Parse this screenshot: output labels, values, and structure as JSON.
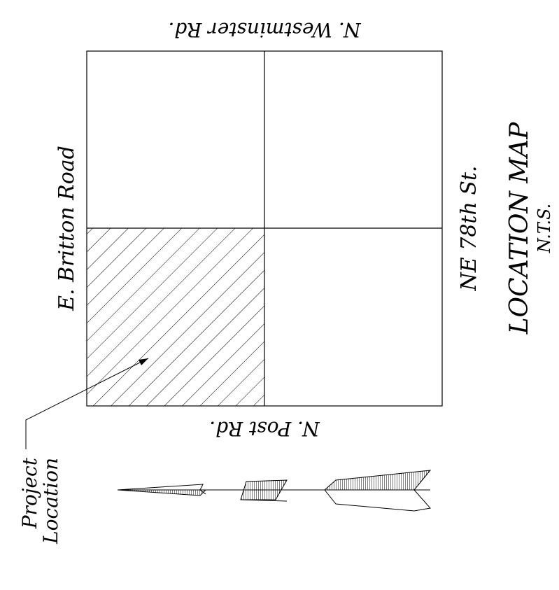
{
  "map": {
    "title": "LOCATION MAP",
    "scale_note": "N.T.S.",
    "roads": {
      "north": "N. Westminster Rd.",
      "south": "N. Post Rd.",
      "west": "E. Britton Road",
      "east": "NE 78th St."
    },
    "project_label_line1": "Project",
    "project_label_line2": "Location",
    "highlighted_quadrant": "southwest"
  }
}
